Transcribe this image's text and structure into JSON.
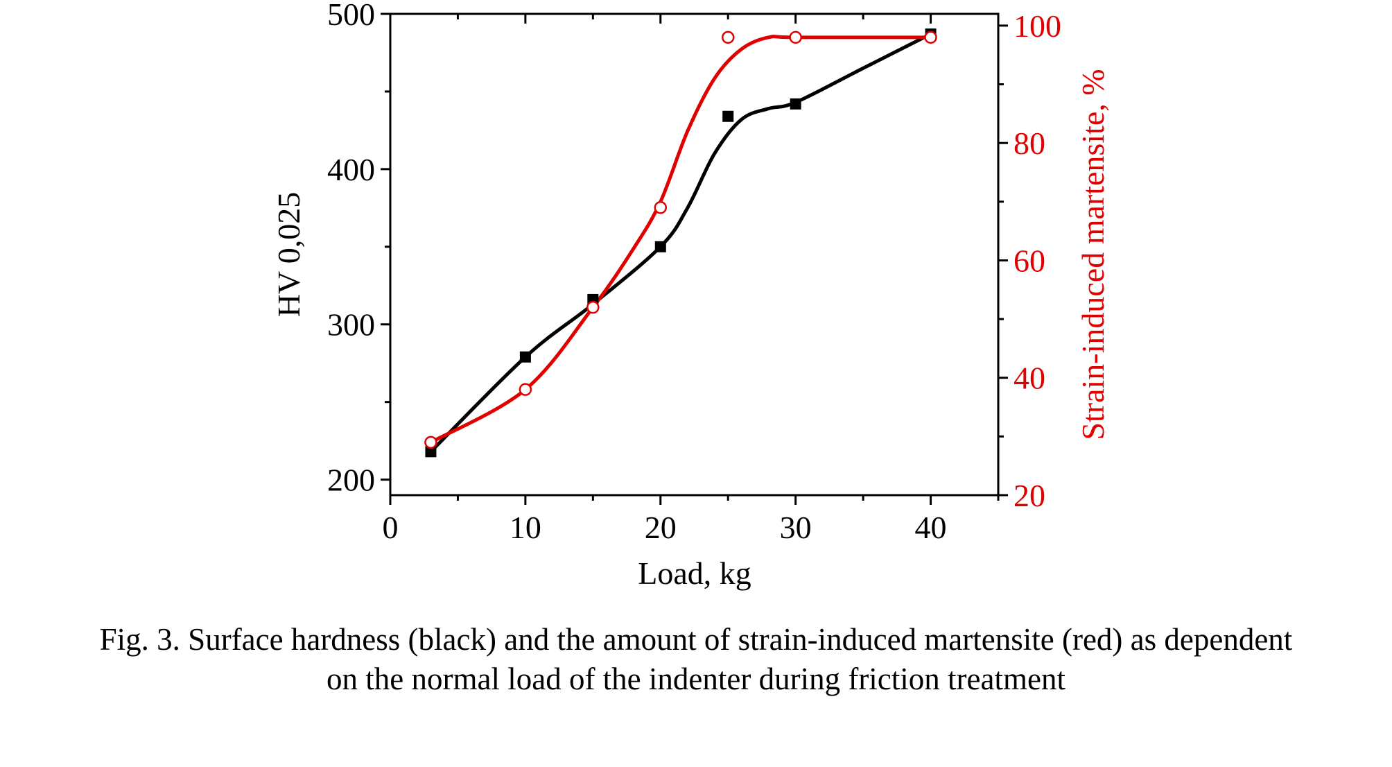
{
  "chart_data": {
    "type": "scatter",
    "x_axis": {
      "label": "Load, kg",
      "range": [
        0,
        45
      ],
      "ticks": [
        0,
        10,
        20,
        30,
        40
      ],
      "minor_ticks": [
        5,
        15,
        25,
        35,
        45
      ]
    },
    "y_axis_left": {
      "label": "HV 0,025",
      "range": [
        190,
        500
      ],
      "ticks": [
        200,
        300,
        400,
        500
      ],
      "minor_ticks": [
        250,
        350,
        450
      ],
      "color": "#000000"
    },
    "y_axis_right": {
      "label": "Strain-induced martensite, %",
      "range": [
        20,
        102
      ],
      "ticks": [
        20,
        40,
        60,
        80,
        100
      ],
      "minor_ticks": [
        30,
        50,
        70,
        90
      ],
      "color": "#e00000"
    },
    "series": [
      {
        "axis": "left",
        "color": "#000000",
        "marker": "filled-square",
        "x": [
          3,
          10,
          15,
          20,
          25,
          30,
          40
        ],
        "y": [
          218,
          279,
          316,
          350,
          434,
          442,
          487
        ],
        "fit_curve": {
          "x": [
            3,
            10,
            15,
            20,
            22,
            24,
            26,
            28,
            30,
            35,
            40
          ],
          "y": [
            218,
            279,
            313,
            350,
            375,
            410,
            432,
            439,
            443,
            465,
            487
          ]
        }
      },
      {
        "axis": "right",
        "color": "#e00000",
        "marker": "open-circle",
        "x": [
          3,
          10,
          15,
          20,
          25,
          30,
          40
        ],
        "y": [
          29,
          38,
          52,
          69,
          98,
          98,
          98
        ],
        "fit_curve": {
          "x": [
            3,
            10,
            15,
            18,
            20,
            22,
            24,
            26,
            28,
            30,
            40
          ],
          "y": [
            29,
            38,
            52,
            62,
            70,
            82,
            91,
            96,
            98,
            98,
            98
          ]
        }
      }
    ]
  },
  "caption": {
    "line1": "Fig. 3. Surface hardness (black) and the amount of strain-induced martensite (red) as dependent",
    "line2": "on the normal load of the indenter during friction treatment"
  }
}
